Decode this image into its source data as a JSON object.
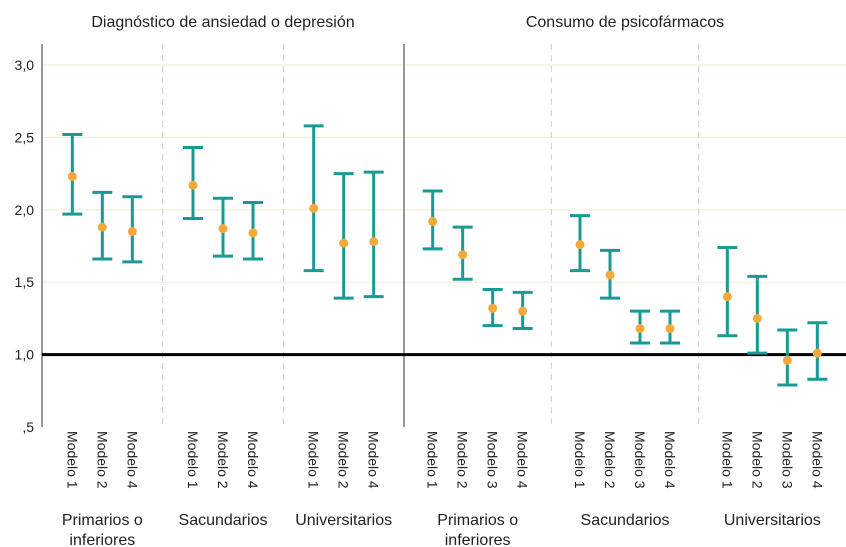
{
  "chart_data": {
    "type": "scatter",
    "error_bars": true,
    "ylim": [
      0.5,
      3.2
    ],
    "yticks": [
      {
        "value": 0.5,
        "label": ",5"
      },
      {
        "value": 1.0,
        "label": "1,0"
      },
      {
        "value": 1.5,
        "label": "1,5"
      },
      {
        "value": 2.0,
        "label": "2,0"
      },
      {
        "value": 2.5,
        "label": "2,5"
      },
      {
        "value": 3.0,
        "label": "3,0"
      }
    ],
    "reference_line": 1.0,
    "grid": true,
    "colors": {
      "bar": "#1a9a95",
      "point": "#f5a93a",
      "grid": "#eeeed2",
      "axis": "#555555",
      "reference": "#000000"
    },
    "panels": [
      {
        "title": "Diagnóstico de ansiedad o depresión",
        "groups": [
          {
            "label_lines": [
              "Primarios o",
              "inferiores"
            ],
            "models": [
              {
                "label": "Modelo 1",
                "value": 2.23,
                "low": 1.97,
                "high": 2.52
              },
              {
                "label": "Modelo 2",
                "value": 1.88,
                "low": 1.66,
                "high": 2.12
              },
              {
                "label": "Modelo 4",
                "value": 1.85,
                "low": 1.64,
                "high": 2.09
              }
            ]
          },
          {
            "label_lines": [
              "Sacundarios"
            ],
            "models": [
              {
                "label": "Modelo 1",
                "value": 2.17,
                "low": 1.94,
                "high": 2.43
              },
              {
                "label": "Modelo 2",
                "value": 1.87,
                "low": 1.68,
                "high": 2.08
              },
              {
                "label": "Modelo 4",
                "value": 1.84,
                "low": 1.66,
                "high": 2.05
              }
            ]
          },
          {
            "label_lines": [
              "Universitarios"
            ],
            "models": [
              {
                "label": "Modelo 1",
                "value": 2.01,
                "low": 1.58,
                "high": 2.58
              },
              {
                "label": "Modelo 2",
                "value": 1.77,
                "low": 1.39,
                "high": 2.25
              },
              {
                "label": "Modelo 4",
                "value": 1.78,
                "low": 1.4,
                "high": 2.26
              }
            ]
          }
        ]
      },
      {
        "title": "Consumo de psicofármacos",
        "groups": [
          {
            "label_lines": [
              "Primarios o",
              "inferiores"
            ],
            "models": [
              {
                "label": "Modelo 1",
                "value": 1.92,
                "low": 1.73,
                "high": 2.13
              },
              {
                "label": "Modelo 2",
                "value": 1.69,
                "low": 1.52,
                "high": 1.88
              },
              {
                "label": "Modelo 3",
                "value": 1.32,
                "low": 1.2,
                "high": 1.45
              },
              {
                "label": "Modelo 4",
                "value": 1.3,
                "low": 1.18,
                "high": 1.43
              }
            ]
          },
          {
            "label_lines": [
              "Sacundarios"
            ],
            "models": [
              {
                "label": "Modelo 1",
                "value": 1.76,
                "low": 1.58,
                "high": 1.96
              },
              {
                "label": "Modelo 2",
                "value": 1.55,
                "low": 1.39,
                "high": 1.72
              },
              {
                "label": "Modelo 3",
                "value": 1.18,
                "low": 1.08,
                "high": 1.3
              },
              {
                "label": "Modelo 4",
                "value": 1.18,
                "low": 1.08,
                "high": 1.3
              }
            ]
          },
          {
            "label_lines": [
              "Universitarios"
            ],
            "models": [
              {
                "label": "Modelo 1",
                "value": 1.4,
                "low": 1.13,
                "high": 1.74
              },
              {
                "label": "Modelo 2",
                "value": 1.25,
                "low": 1.01,
                "high": 1.54
              },
              {
                "label": "Modelo 3",
                "value": 0.96,
                "low": 0.79,
                "high": 1.17
              },
              {
                "label": "Modelo 4",
                "value": 1.01,
                "low": 0.83,
                "high": 1.22
              }
            ]
          }
        ]
      }
    ]
  }
}
